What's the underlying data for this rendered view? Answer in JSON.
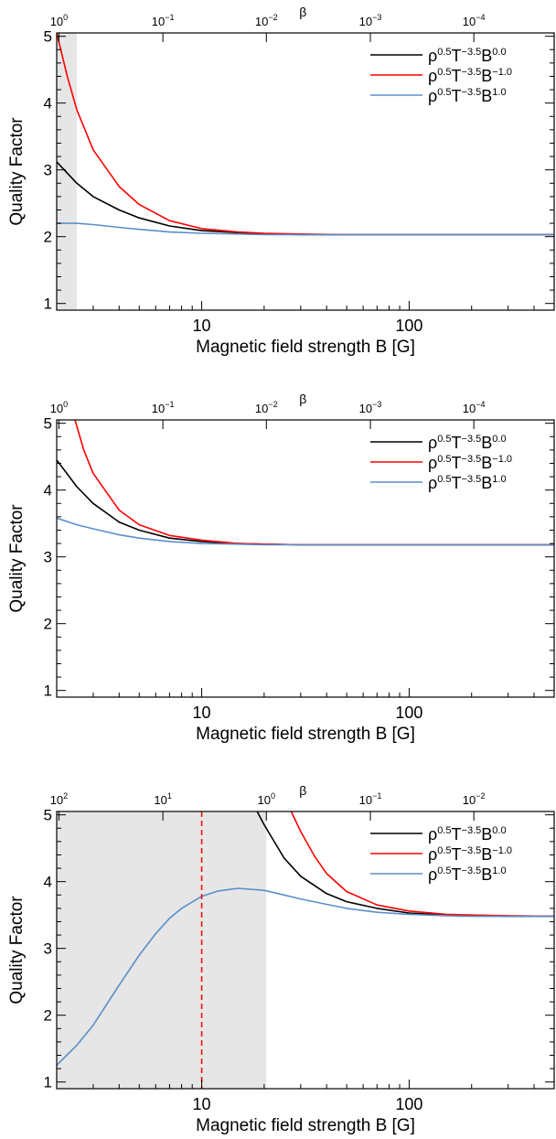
{
  "chart_data": [
    {
      "type": "line",
      "xlabel": "Magnetic field strength B [G]",
      "ylabel": "Quality Factor",
      "top_axis_label": "β",
      "xscale": "log",
      "xlim": [
        2.0,
        500
      ],
      "ylim": [
        0.9,
        5.05
      ],
      "x_ticks": [
        {
          "value": 10,
          "label": "10"
        },
        {
          "value": 100,
          "label": "100"
        }
      ],
      "y_ticks": [
        1,
        2,
        3,
        4,
        5
      ],
      "top_ticks": [
        {
          "x": 2.05,
          "base": "10",
          "exp": "0"
        },
        {
          "x": 6.5,
          "base": "10",
          "exp": "−1"
        },
        {
          "x": 20.5,
          "base": "10",
          "exp": "−2"
        },
        {
          "x": 65,
          "base": "10",
          "exp": "−3"
        },
        {
          "x": 205,
          "base": "10",
          "exp": "−4"
        }
      ],
      "shaded_x": [
        2.0,
        2.5
      ],
      "vline": null,
      "legend_position": "top-right",
      "series": [
        {
          "name": "ρ0.5T−3.5B0.0",
          "color": "#000000",
          "x": [
            2.0,
            2.5,
            3,
            4,
            5,
            7,
            10,
            15,
            20,
            30,
            50,
            100,
            200,
            500
          ],
          "y": [
            3.12,
            2.8,
            2.6,
            2.4,
            2.28,
            2.16,
            2.09,
            2.06,
            2.04,
            2.03,
            2.03,
            2.03,
            2.03,
            2.03
          ]
        },
        {
          "name": "ρ0.5T−3.5B−1.0",
          "color": "#ff0000",
          "x": [
            2.0,
            2.25,
            2.5,
            3,
            4,
            5,
            7,
            10,
            15,
            20,
            30,
            50,
            100,
            200,
            500
          ],
          "y": [
            5.05,
            4.4,
            3.9,
            3.3,
            2.75,
            2.48,
            2.24,
            2.12,
            2.07,
            2.05,
            2.04,
            2.03,
            2.03,
            2.03,
            2.03
          ]
        },
        {
          "name": "ρ0.5T−3.5B1.0",
          "color": "#5b8fc9",
          "x": [
            2.0,
            2.5,
            3,
            4,
            5,
            7,
            10,
            15,
            20,
            30,
            50,
            100,
            200,
            500
          ],
          "y": [
            2.2,
            2.2,
            2.18,
            2.14,
            2.11,
            2.07,
            2.05,
            2.04,
            2.03,
            2.03,
            2.03,
            2.03,
            2.03,
            2.03
          ]
        }
      ]
    },
    {
      "type": "line",
      "xlabel": "Magnetic field strength B [G]",
      "ylabel": "Quality Factor",
      "top_axis_label": "β",
      "xscale": "log",
      "xlim": [
        2.0,
        500
      ],
      "ylim": [
        0.9,
        5.05
      ],
      "x_ticks": [
        {
          "value": 10,
          "label": "10"
        },
        {
          "value": 100,
          "label": "100"
        }
      ],
      "y_ticks": [
        1,
        2,
        3,
        4,
        5
      ],
      "top_ticks": [
        {
          "x": 2.05,
          "base": "10",
          "exp": "0"
        },
        {
          "x": 6.5,
          "base": "10",
          "exp": "−1"
        },
        {
          "x": 20.5,
          "base": "10",
          "exp": "−2"
        },
        {
          "x": 65,
          "base": "10",
          "exp": "−3"
        },
        {
          "x": 205,
          "base": "10",
          "exp": "−4"
        }
      ],
      "shaded_x": null,
      "vline": null,
      "legend_position": "top-right",
      "series": [
        {
          "name": "ρ0.5T−3.5B0.0",
          "color": "#000000",
          "x": [
            2.0,
            2.5,
            3,
            4,
            5,
            7,
            10,
            15,
            20,
            30,
            50,
            100,
            200,
            500
          ],
          "y": [
            4.45,
            4.05,
            3.8,
            3.52,
            3.4,
            3.28,
            3.23,
            3.2,
            3.19,
            3.18,
            3.18,
            3.18,
            3.18,
            3.18
          ]
        },
        {
          "name": "ρ0.5T−3.5B−1.0",
          "color": "#ff0000",
          "x": [
            2.45,
            2.7,
            3,
            4,
            5,
            7,
            10,
            15,
            20,
            30,
            50,
            100,
            200,
            500
          ],
          "y": [
            5.05,
            4.6,
            4.25,
            3.7,
            3.48,
            3.32,
            3.25,
            3.2,
            3.19,
            3.18,
            3.18,
            3.18,
            3.18,
            3.18
          ]
        },
        {
          "name": "ρ0.5T−3.5B1.0",
          "color": "#5b8fc9",
          "x": [
            2.0,
            2.5,
            3,
            4,
            5,
            7,
            10,
            15,
            20,
            30,
            50,
            100,
            200,
            500
          ],
          "y": [
            3.58,
            3.48,
            3.42,
            3.33,
            3.28,
            3.23,
            3.2,
            3.19,
            3.18,
            3.18,
            3.18,
            3.18,
            3.18,
            3.18
          ]
        }
      ]
    },
    {
      "type": "line",
      "xlabel": "Magnetic field strength B [G]",
      "ylabel": "Quality Factor",
      "top_axis_label": "β",
      "xscale": "log",
      "xlim": [
        2.0,
        500
      ],
      "ylim": [
        0.9,
        5.05
      ],
      "x_ticks": [
        {
          "value": 10,
          "label": "10"
        },
        {
          "value": 100,
          "label": "100"
        }
      ],
      "y_ticks": [
        1,
        2,
        3,
        4,
        5
      ],
      "top_ticks": [
        {
          "x": 2.05,
          "base": "10",
          "exp": "2"
        },
        {
          "x": 6.5,
          "base": "10",
          "exp": "1"
        },
        {
          "x": 20.5,
          "base": "10",
          "exp": "0"
        },
        {
          "x": 65,
          "base": "10",
          "exp": "−1"
        },
        {
          "x": 205,
          "base": "10",
          "exp": "−2"
        }
      ],
      "shaded_x": [
        2.0,
        20.5
      ],
      "vline": {
        "x": 10,
        "color": "#ff0000"
      },
      "legend_position": "top-right",
      "series": [
        {
          "name": "ρ0.5T−3.5B0.0",
          "color": "#000000",
          "x": [
            18.5,
            20,
            25,
            30,
            40,
            50,
            70,
            100,
            150,
            200,
            300,
            500
          ],
          "y": [
            5.05,
            4.85,
            4.35,
            4.08,
            3.82,
            3.7,
            3.6,
            3.53,
            3.5,
            3.49,
            3.48,
            3.48
          ]
        },
        {
          "name": "ρ0.5T−3.5B−1.0",
          "color": "#ff0000",
          "x": [
            27,
            30,
            35,
            40,
            50,
            70,
            100,
            150,
            200,
            300,
            500
          ],
          "y": [
            5.05,
            4.75,
            4.38,
            4.12,
            3.85,
            3.65,
            3.56,
            3.51,
            3.5,
            3.49,
            3.48
          ]
        },
        {
          "name": "ρ0.5T−3.5B1.0",
          "color": "#5b8fc9",
          "x": [
            2.0,
            2.5,
            3,
            4,
            5,
            6,
            7,
            8,
            10,
            12,
            15,
            20,
            25,
            30,
            40,
            50,
            70,
            100,
            150,
            200,
            300,
            500
          ],
          "y": [
            1.25,
            1.55,
            1.85,
            2.45,
            2.9,
            3.22,
            3.45,
            3.6,
            3.78,
            3.86,
            3.9,
            3.87,
            3.8,
            3.74,
            3.66,
            3.6,
            3.54,
            3.51,
            3.49,
            3.48,
            3.48,
            3.48
          ]
        }
      ]
    }
  ]
}
